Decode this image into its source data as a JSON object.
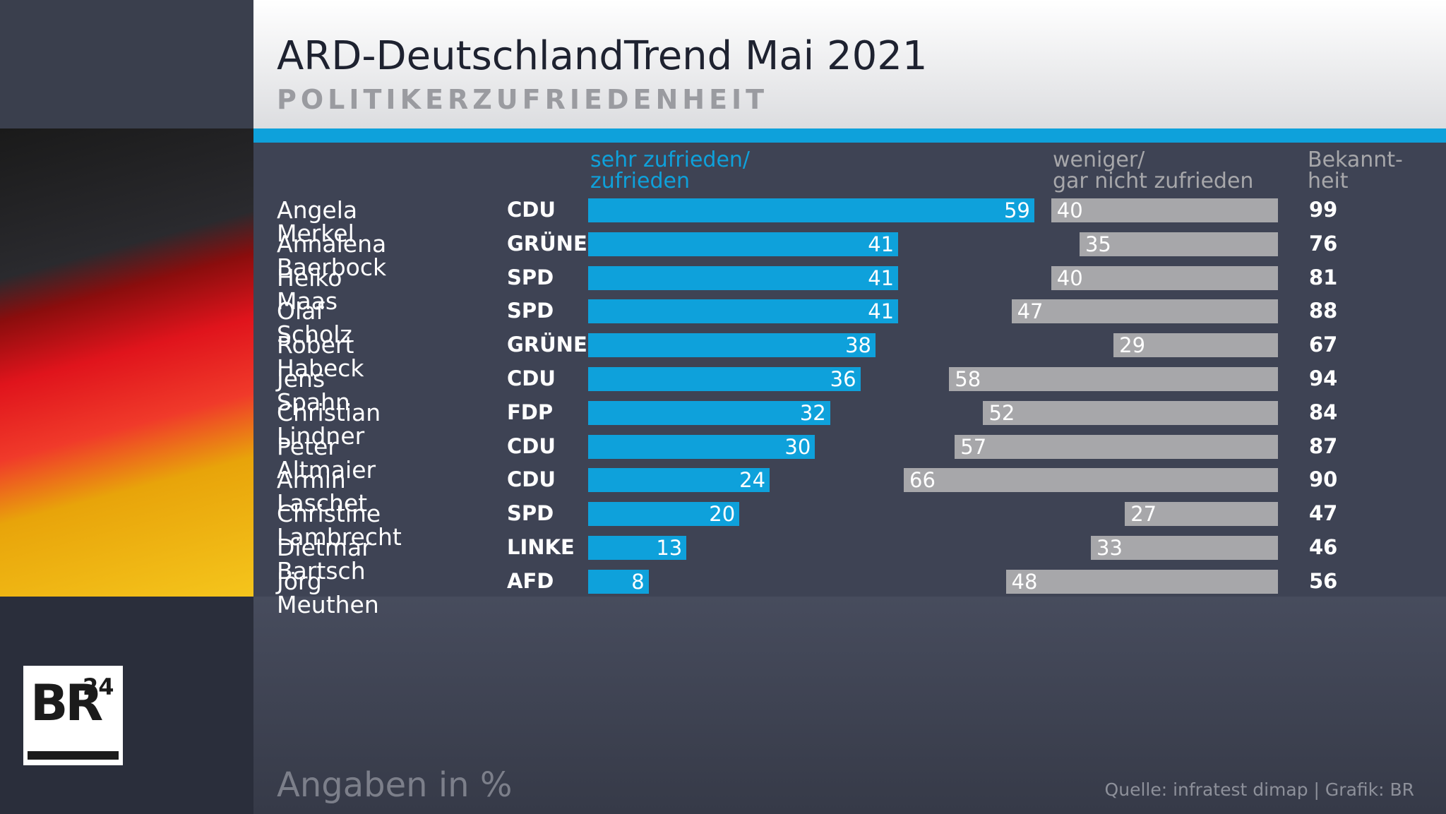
{
  "chart_data": {
    "type": "bar",
    "title": "ARD-DeutschlandTrend Mai 2021",
    "subtitle": "POLITIKERZUFRIEDENHEIT",
    "categories": [
      "Angela Merkel",
      "Annalena Baerbock",
      "Heiko Maas",
      "Olaf Scholz",
      "Robert Habeck",
      "Jens Spahn",
      "Christian Lindner",
      "Peter Altmaier",
      "Armin Laschet",
      "Christine Lambrecht",
      "Dietmar Bartsch",
      "Jörg Meuthen"
    ],
    "parties": [
      "CDU",
      "GRÜNE",
      "SPD",
      "SPD",
      "GRÜNE",
      "CDU",
      "FDP",
      "CDU",
      "CDU",
      "SPD",
      "LINKE",
      "AFD"
    ],
    "series": [
      {
        "name": "sehr zufrieden/\nzufrieden",
        "color": "#0ea1db",
        "values": [
          59,
          41,
          41,
          41,
          38,
          36,
          32,
          30,
          24,
          20,
          13,
          8
        ]
      },
      {
        "name": "weniger/\ngar nicht zufrieden",
        "color": "#a7a7aa",
        "values": [
          40,
          35,
          40,
          47,
          29,
          58,
          52,
          57,
          66,
          27,
          33,
          48
        ]
      }
    ],
    "awareness": {
      "name": "Bekannt-\nheit",
      "values": [
        99,
        76,
        81,
        88,
        67,
        94,
        84,
        87,
        90,
        47,
        46,
        56
      ]
    },
    "note": "Angaben in %",
    "source": "Quelle: infratest dimap | Grafik: BR",
    "logo": {
      "main": "BR",
      "sup": "24"
    }
  }
}
